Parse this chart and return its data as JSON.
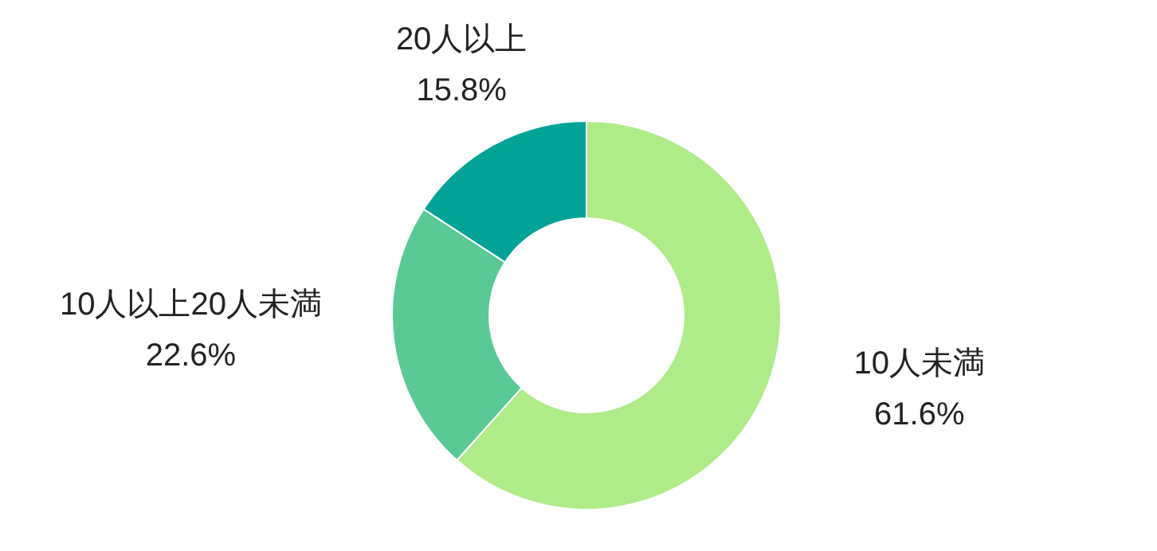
{
  "chart_data": {
    "type": "donut",
    "categories": [
      "10人未満",
      "10人以上20人未満",
      "20人以上"
    ],
    "values": [
      61.6,
      22.6,
      15.8
    ],
    "value_labels": [
      "61.6%",
      "22.6%",
      "15.8%"
    ],
    "colors": [
      "#b0eb8a",
      "#5ac995",
      "#00a396"
    ]
  }
}
